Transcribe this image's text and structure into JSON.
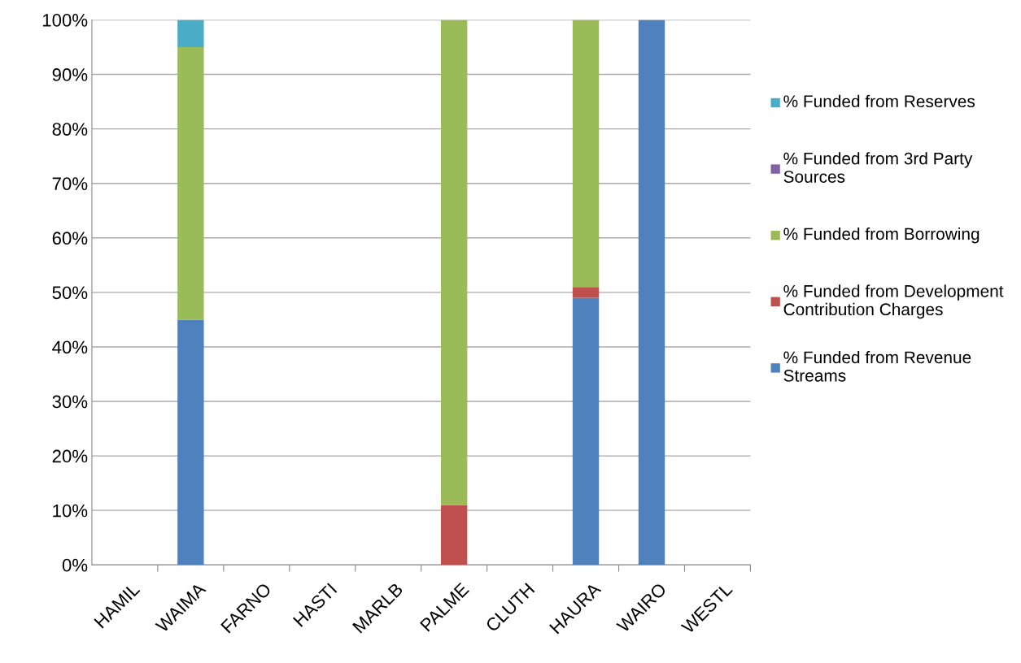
{
  "chart_data": {
    "type": "bar",
    "stacked": true,
    "categories": [
      "HAMIL",
      "WAIMA",
      "FARNO",
      "HASTI",
      "MARLB",
      "PALME",
      "CLUTH",
      "HAURA",
      "WAIRO",
      "WESTL"
    ],
    "series": [
      {
        "name": "% Funded from Revenue Streams",
        "color": "#4f81bd",
        "values": [
          0,
          45,
          0,
          0,
          0,
          0,
          0,
          49,
          100,
          0
        ]
      },
      {
        "name": "% Funded from Development Contribution Charges",
        "color": "#c0504d",
        "values": [
          0,
          0,
          0,
          0,
          0,
          11,
          0,
          2,
          0,
          0
        ]
      },
      {
        "name": "% Funded from Borrowing",
        "color": "#9bbb59",
        "values": [
          0,
          50,
          0,
          0,
          0,
          89,
          0,
          49,
          0,
          0
        ]
      },
      {
        "name": "% Funded from 3rd Party Sources",
        "color": "#8064a2",
        "values": [
          0,
          0,
          0,
          0,
          0,
          0,
          0,
          0,
          0,
          0
        ]
      },
      {
        "name": "% Funded from Reserves",
        "color": "#4bacc6",
        "values": [
          0,
          5,
          0,
          0,
          0,
          0,
          0,
          0,
          0,
          0
        ]
      }
    ],
    "ylim": [
      0,
      100
    ],
    "yticks": [
      {
        "value": 0,
        "label": "0%"
      },
      {
        "value": 10,
        "label": "10%"
      },
      {
        "value": 20,
        "label": "20%"
      },
      {
        "value": 30,
        "label": "30%"
      },
      {
        "value": 40,
        "label": "40%"
      },
      {
        "value": 50,
        "label": "50%"
      },
      {
        "value": 60,
        "label": "60%"
      },
      {
        "value": 70,
        "label": "70%"
      },
      {
        "value": 80,
        "label": "80%"
      },
      {
        "value": 90,
        "label": "90%"
      },
      {
        "value": 100,
        "label": "100%"
      }
    ],
    "grid": "y",
    "legend": "right"
  }
}
